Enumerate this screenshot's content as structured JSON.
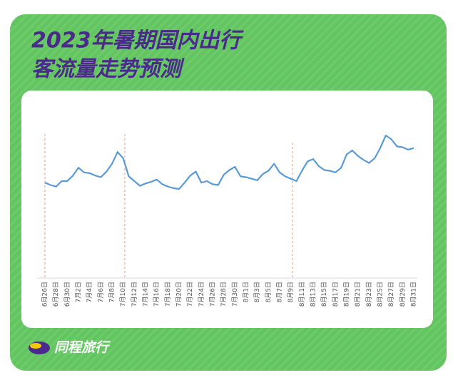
{
  "chart_data": {
    "type": "line",
    "title": "2023年暑期国内出行",
    "subtitle": "客流量走势预测",
    "brand": "同程旅行",
    "color": "#5b9bd5",
    "categories": [
      "6月26日",
      null,
      "6月28日",
      null,
      "6月30日",
      null,
      "7月2日",
      null,
      "7月4日",
      null,
      "7月6日",
      null,
      "7月8日",
      null,
      "7月10日",
      null,
      "7月12日",
      null,
      "7月14日",
      null,
      "7月16日",
      null,
      "7月18日",
      null,
      "7月20日",
      null,
      "7月22日",
      null,
      "7月24日",
      null,
      "7月26日",
      null,
      "7月28日",
      null,
      "7月30日",
      null,
      "8月1日",
      null,
      "8月3日",
      null,
      "8月5日",
      null,
      "8月7日",
      null,
      "8月9日",
      null,
      "8月11日",
      null,
      "8月13日",
      null,
      "8月15日",
      null,
      "8月17日",
      null,
      "8月19日",
      null,
      "8月21日",
      null,
      "8月23日",
      null,
      "8月25日",
      null,
      "8月27日",
      null,
      "8月29日",
      null,
      "8月31日"
    ],
    "values": [
      45,
      42,
      40,
      47,
      47,
      54,
      64,
      58,
      57,
      54,
      52,
      59,
      69,
      84,
      76,
      53,
      47,
      41,
      44,
      46,
      49,
      43,
      40,
      38,
      37,
      45,
      54,
      59,
      45,
      47,
      43,
      42,
      55,
      61,
      65,
      53,
      52,
      50,
      48,
      56,
      60,
      69,
      58,
      53,
      50,
      47,
      60,
      72,
      75,
      66,
      61,
      60,
      58,
      64,
      81,
      86,
      79,
      74,
      70,
      76,
      89,
      105,
      100,
      91,
      90,
      87,
      89
    ]
  }
}
